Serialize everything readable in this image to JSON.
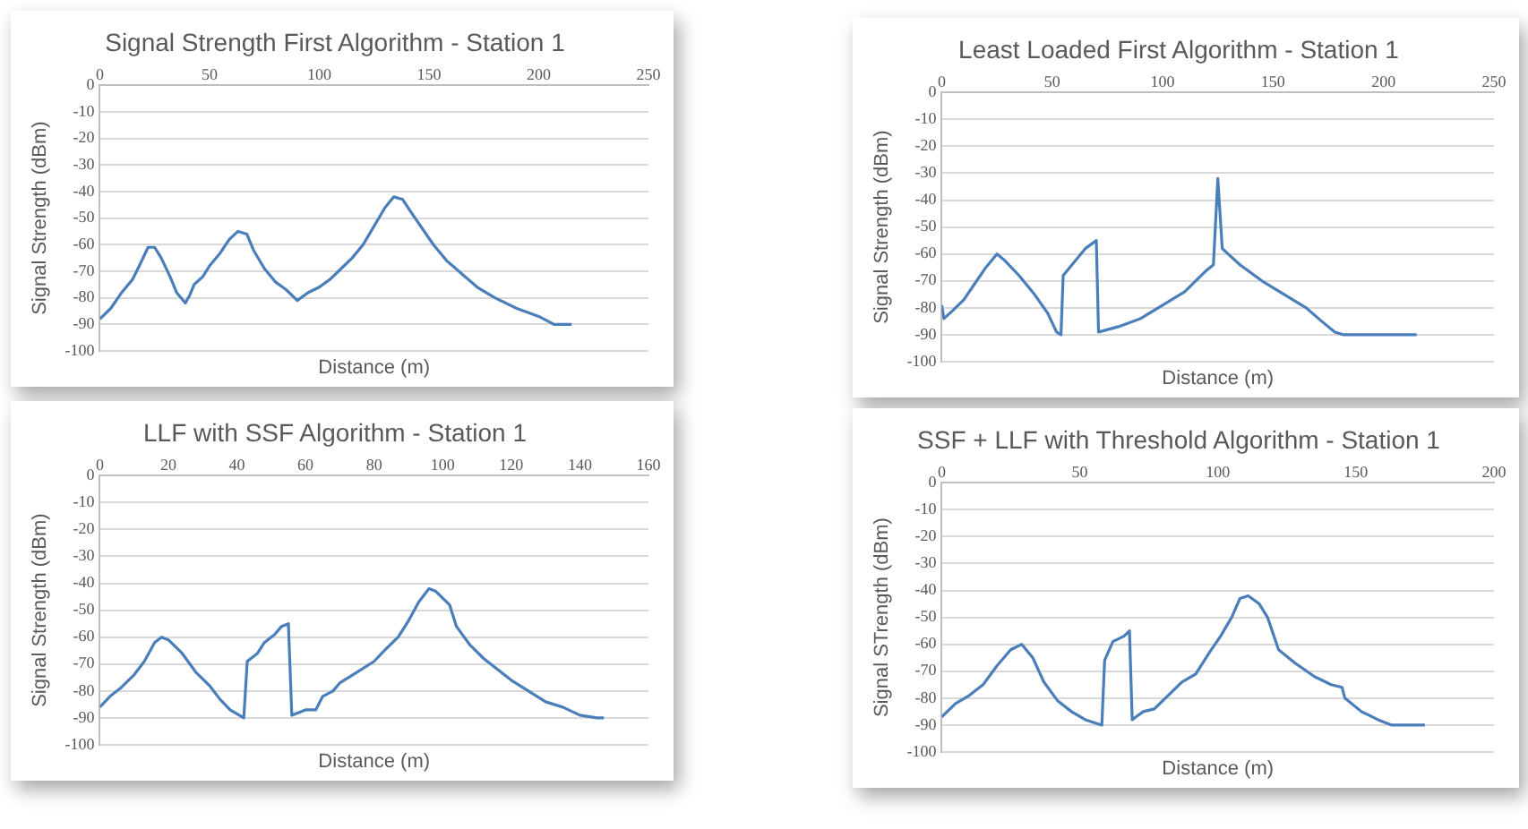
{
  "chart_data": [
    {
      "type": "line",
      "title": "Signal Strength First Algorithm - Station 1",
      "xlabel": "Distance (m)",
      "ylabel": "Signal Strength (dBm)",
      "xlim": [
        0,
        250
      ],
      "xticks": [
        0,
        50,
        100,
        150,
        200,
        250
      ],
      "ylim": [
        -100,
        0
      ],
      "yticks": [
        0,
        -10,
        -20,
        -30,
        -40,
        -50,
        -60,
        -70,
        -80,
        -90,
        -100
      ],
      "grid": "y",
      "legend": false,
      "marker": "none",
      "line_style": "solid",
      "series": [
        {
          "color": "#4a7ebb",
          "x": [
            0,
            5,
            10,
            15,
            18,
            22,
            25,
            28,
            32,
            35,
            39,
            41,
            43,
            47,
            50,
            55,
            59,
            63,
            67,
            70,
            75,
            80,
            85,
            90,
            95,
            100,
            105,
            110,
            115,
            120,
            125,
            130,
            134,
            138,
            142,
            147,
            152,
            158,
            165,
            172,
            180,
            190,
            200,
            207,
            215
          ],
          "values": [
            -88,
            -84,
            -78,
            -73,
            -68,
            -61,
            -61,
            -65,
            -72,
            -78,
            -82,
            -79,
            -75,
            -72,
            -68,
            -63,
            -58,
            -55,
            -56,
            -62,
            -69,
            -74,
            -77,
            -81,
            -78,
            -76,
            -73,
            -69,
            -65,
            -60,
            -53,
            -46,
            -42,
            -43,
            -48,
            -54,
            -60,
            -66,
            -71,
            -76,
            -80,
            -84,
            -87,
            -90,
            -90
          ]
        }
      ]
    },
    {
      "type": "line",
      "title": "Least Loaded First Algorithm - Station 1",
      "xlabel": "Distance (m)",
      "ylabel": "Signal Strength (dBm)",
      "xlim": [
        0,
        250
      ],
      "xticks": [
        0,
        50,
        100,
        150,
        200,
        250
      ],
      "ylim": [
        -100,
        0
      ],
      "yticks": [
        0,
        -10,
        -20,
        -30,
        -40,
        -50,
        -60,
        -70,
        -80,
        -90,
        -100
      ],
      "grid": "y",
      "legend": false,
      "marker": "none",
      "line_style": "solid",
      "series": [
        {
          "color": "#4a7ebb",
          "x": [
            0,
            1,
            5,
            10,
            15,
            20,
            25,
            28,
            35,
            42,
            48,
            52,
            54,
            55,
            60,
            65,
            70,
            71,
            80,
            90,
            100,
            110,
            120,
            123,
            125,
            127,
            135,
            145,
            155,
            165,
            172,
            178,
            182,
            215
          ],
          "values": [
            -79,
            -84,
            -81,
            -77,
            -71,
            -65,
            -60,
            -62,
            -68,
            -75,
            -82,
            -89,
            -90,
            -68,
            -63,
            -58,
            -55,
            -89,
            -87,
            -84,
            -79,
            -74,
            -66,
            -64,
            -32,
            -58,
            -64,
            -70,
            -75,
            -80,
            -85,
            -89,
            -90,
            -90
          ]
        }
      ]
    },
    {
      "type": "line",
      "title": "LLF with SSF Algorithm - Station 1",
      "xlabel": "Distance (m)",
      "ylabel": "Signal Strength (dBm)",
      "xlim": [
        0,
        160
      ],
      "xticks": [
        0,
        20,
        40,
        60,
        80,
        100,
        120,
        140,
        160
      ],
      "ylim": [
        -100,
        0
      ],
      "yticks": [
        0,
        -10,
        -20,
        -30,
        -40,
        -50,
        -60,
        -70,
        -80,
        -90,
        -100
      ],
      "grid": "y",
      "legend": false,
      "marker": "none",
      "line_style": "solid",
      "series": [
        {
          "color": "#4a7ebb",
          "x": [
            0,
            3,
            6,
            10,
            13,
            16,
            18,
            20,
            24,
            28,
            32,
            35,
            38,
            42,
            43,
            46,
            48,
            51,
            53,
            55,
            56,
            60,
            63,
            65,
            68,
            70,
            75,
            80,
            83,
            87,
            90,
            93,
            96,
            98,
            102,
            104,
            108,
            112,
            116,
            120,
            125,
            130,
            135,
            140,
            145,
            147
          ],
          "values": [
            -86,
            -82,
            -79,
            -74,
            -69,
            -62,
            -60,
            -61,
            -66,
            -73,
            -78,
            -83,
            -87,
            -90,
            -69,
            -66,
            -62,
            -59,
            -56,
            -55,
            -89,
            -87,
            -87,
            -82,
            -80,
            -77,
            -73,
            -69,
            -65,
            -60,
            -54,
            -47,
            -42,
            -43,
            -48,
            -56,
            -63,
            -68,
            -72,
            -76,
            -80,
            -84,
            -86,
            -89,
            -90,
            -90
          ]
        }
      ]
    },
    {
      "type": "line",
      "title": "SSF + LLF with Threshold Algorithm - Station 1",
      "xlabel": "Distance (m)",
      "ylabel": "Signal STrength (dBm)",
      "xlim": [
        0,
        200
      ],
      "xticks": [
        0,
        50,
        100,
        150,
        200
      ],
      "ylim": [
        -100,
        0
      ],
      "yticks": [
        0,
        -10,
        -20,
        -30,
        -40,
        -50,
        -60,
        -70,
        -80,
        -90,
        -100
      ],
      "grid": "y",
      "legend": false,
      "marker": "none",
      "line_style": "solid",
      "series": [
        {
          "color": "#4a7ebb",
          "x": [
            0,
            5,
            10,
            15,
            20,
            25,
            29,
            33,
            37,
            42,
            47,
            52,
            58,
            59,
            62,
            66,
            68,
            69,
            73,
            77,
            82,
            87,
            92,
            97,
            101,
            105,
            108,
            111,
            115,
            118,
            122,
            128,
            135,
            141,
            145,
            146,
            152,
            158,
            163,
            175
          ],
          "values": [
            -87,
            -82,
            -79,
            -75,
            -68,
            -62,
            -60,
            -65,
            -74,
            -81,
            -85,
            -88,
            -90,
            -66,
            -59,
            -57,
            -55,
            -88,
            -85,
            -84,
            -79,
            -74,
            -71,
            -63,
            -57,
            -50,
            -43,
            -42,
            -45,
            -50,
            -62,
            -67,
            -72,
            -75,
            -76,
            -80,
            -85,
            -88,
            -90,
            -90
          ]
        }
      ]
    }
  ]
}
